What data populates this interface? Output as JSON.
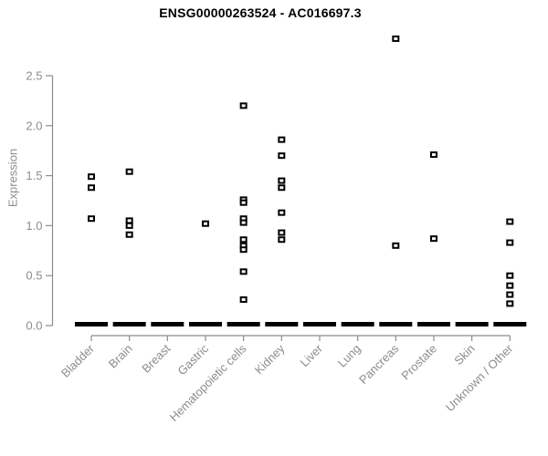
{
  "chart_data": {
    "type": "scatter",
    "title": "ENSG00000263524 - AC016697.3",
    "ylabel": "Expression",
    "xlabel": "",
    "ylim": [
      0,
      2.5
    ],
    "yticks": [
      "0.0",
      "0.5",
      "1.0",
      "1.5",
      "2.0",
      "2.5"
    ],
    "grid": false,
    "legend": false,
    "marker": "open-square",
    "categories": [
      "Bladder",
      "Brain",
      "Breast",
      "Gastric",
      "Hematopoietic cells",
      "Kidney",
      "Liver",
      "Lung",
      "Pancreas",
      "Prostate",
      "Skin",
      "Unknown / Other"
    ],
    "series": [
      {
        "category": "Bladder",
        "nonzero_values": [
          1.49,
          1.38,
          1.07
        ],
        "zero_cluster": true
      },
      {
        "category": "Brain",
        "nonzero_values": [
          1.54,
          1.05,
          1.0,
          0.91
        ],
        "zero_cluster": true
      },
      {
        "category": "Breast",
        "nonzero_values": [],
        "zero_cluster": true
      },
      {
        "category": "Gastric",
        "nonzero_values": [
          1.02
        ],
        "zero_cluster": true
      },
      {
        "category": "Hematopoietic cells",
        "nonzero_values": [
          2.2,
          1.26,
          1.23,
          1.07,
          1.03,
          0.86,
          0.8,
          0.76,
          0.54,
          0.26
        ],
        "zero_cluster": true
      },
      {
        "category": "Kidney",
        "nonzero_values": [
          1.86,
          1.7,
          1.45,
          1.38,
          1.13,
          0.93,
          0.86
        ],
        "zero_cluster": true
      },
      {
        "category": "Liver",
        "nonzero_values": [],
        "zero_cluster": true
      },
      {
        "category": "Lung",
        "nonzero_values": [],
        "zero_cluster": true
      },
      {
        "category": "Pancreas",
        "nonzero_values": [
          2.87,
          0.8
        ],
        "zero_cluster": true
      },
      {
        "category": "Prostate",
        "nonzero_values": [
          1.71,
          0.87
        ],
        "zero_cluster": true
      },
      {
        "category": "Skin",
        "nonzero_values": [],
        "zero_cluster": true
      },
      {
        "category": "Unknown / Other",
        "nonzero_values": [
          1.04,
          0.83,
          0.5,
          0.4,
          0.31,
          0.22
        ],
        "zero_cluster": true
      }
    ],
    "colors": {
      "marker": "#000000",
      "axis": "#8c8c8c",
      "tick_label": "#8c8c8c",
      "title": "#000000",
      "background": "#ffffff"
    }
  }
}
